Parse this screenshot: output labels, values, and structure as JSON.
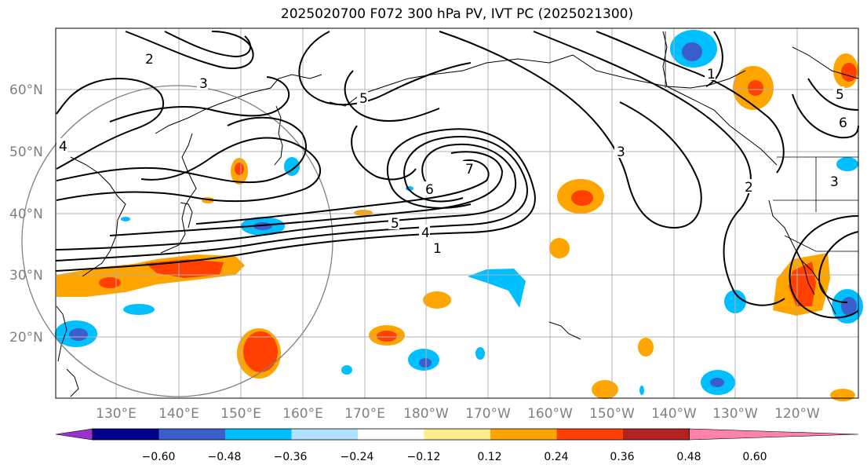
{
  "title": "2025020700 F072 300 hPa PV, IVT PC (2025021300)",
  "map": {
    "lat_labels": [
      "60°N",
      "50°N",
      "40°N",
      "30°N",
      "20°N"
    ],
    "lon_labels": [
      "130°E",
      "140°E",
      "150°E",
      "160°E",
      "170°E",
      "180°W",
      "170°W",
      "160°W",
      "150°W",
      "140°W",
      "130°W",
      "120°W"
    ],
    "pv_contour_labels": [
      "1",
      "2",
      "3",
      "4",
      "5",
      "6",
      "7"
    ]
  },
  "colorbar": {
    "ticks": [
      "−0.60",
      "−0.48",
      "−0.36",
      "−0.24",
      "−0.12",
      "0.12",
      "0.24",
      "0.36",
      "0.48",
      "0.60"
    ],
    "colors": [
      "#9932cc",
      "#00008b",
      "#3a5fcd",
      "#00bfff",
      "#b0e2ff",
      "#ffffff",
      "#ffec8b",
      "#ffa500",
      "#ff4000",
      "#b22222",
      "#ff82ab"
    ]
  }
}
